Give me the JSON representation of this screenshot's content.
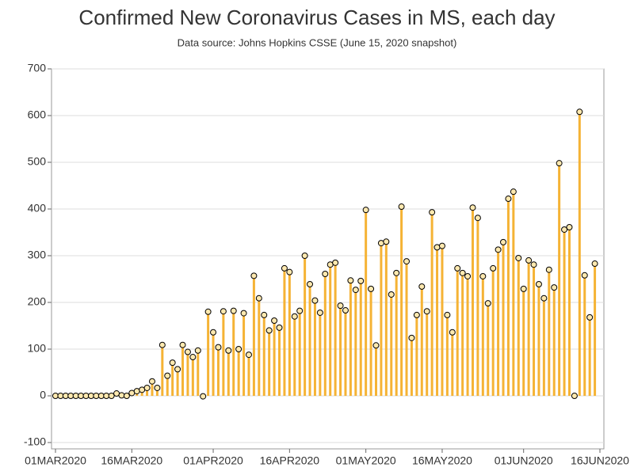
{
  "chart_data": {
    "type": "needle",
    "title": "Confirmed New Coronavirus Cases in MS, each day",
    "subtitle": "Data source: Johns Hopkins CSSE (June 15, 2020 snapshot)",
    "color": "#f5b335",
    "marker_color": "#ffe9b0",
    "grid": true,
    "x": [
      "2020-03-01",
      "2020-03-02",
      "2020-03-03",
      "2020-03-04",
      "2020-03-05",
      "2020-03-06",
      "2020-03-07",
      "2020-03-08",
      "2020-03-09",
      "2020-03-10",
      "2020-03-11",
      "2020-03-12",
      "2020-03-13",
      "2020-03-14",
      "2020-03-15",
      "2020-03-16",
      "2020-03-17",
      "2020-03-18",
      "2020-03-19",
      "2020-03-20",
      "2020-03-21",
      "2020-03-22",
      "2020-03-23",
      "2020-03-24",
      "2020-03-25",
      "2020-03-26",
      "2020-03-27",
      "2020-03-28",
      "2020-03-29",
      "2020-03-30",
      "2020-03-31",
      "2020-04-01",
      "2020-04-02",
      "2020-04-03",
      "2020-04-04",
      "2020-04-05",
      "2020-04-06",
      "2020-04-07",
      "2020-04-08",
      "2020-04-09",
      "2020-04-10",
      "2020-04-11",
      "2020-04-12",
      "2020-04-13",
      "2020-04-14",
      "2020-04-15",
      "2020-04-16",
      "2020-04-17",
      "2020-04-18",
      "2020-04-19",
      "2020-04-20",
      "2020-04-21",
      "2020-04-22",
      "2020-04-23",
      "2020-04-24",
      "2020-04-25",
      "2020-04-26",
      "2020-04-27",
      "2020-04-28",
      "2020-04-29",
      "2020-04-30",
      "2020-05-01",
      "2020-05-02",
      "2020-05-03",
      "2020-05-04",
      "2020-05-05",
      "2020-05-06",
      "2020-05-07",
      "2020-05-08",
      "2020-05-09",
      "2020-05-10",
      "2020-05-11",
      "2020-05-12",
      "2020-05-13",
      "2020-05-14",
      "2020-05-15",
      "2020-05-16",
      "2020-05-17",
      "2020-05-18",
      "2020-05-19",
      "2020-05-20",
      "2020-05-21",
      "2020-05-22",
      "2020-05-23",
      "2020-05-24",
      "2020-05-25",
      "2020-05-26",
      "2020-05-27",
      "2020-05-28",
      "2020-05-29",
      "2020-05-30",
      "2020-05-31",
      "2020-06-01",
      "2020-06-02",
      "2020-06-03",
      "2020-06-04",
      "2020-06-05",
      "2020-06-06",
      "2020-06-07",
      "2020-06-08",
      "2020-06-09",
      "2020-06-10",
      "2020-06-11",
      "2020-06-12",
      "2020-06-13",
      "2020-06-14",
      "2020-06-15"
    ],
    "values": [
      0,
      0,
      0,
      0,
      0,
      0,
      0,
      0,
      0,
      0,
      0,
      0,
      5,
      1,
      0,
      6,
      10,
      13,
      17,
      31,
      17,
      109,
      43,
      71,
      57,
      109,
      94,
      83,
      97,
      -1,
      180,
      136,
      104,
      181,
      97,
      182,
      100,
      177,
      88,
      257,
      209,
      173,
      140,
      161,
      146,
      273,
      265,
      170,
      182,
      300,
      239,
      204,
      178,
      261,
      281,
      285,
      193,
      183,
      247,
      227,
      246,
      398,
      229,
      108,
      327,
      330,
      217,
      263,
      405,
      288,
      124,
      173,
      234,
      181,
      393,
      318,
      321,
      173,
      136,
      273,
      263,
      256,
      403,
      381,
      256,
      198,
      273,
      313,
      329,
      422,
      437,
      295,
      229,
      290,
      281,
      239,
      209,
      270,
      232,
      498,
      356,
      361,
      0,
      608,
      258,
      168,
      283
    ],
    "xlim": [
      "2020-03-01",
      "2020-06-16"
    ],
    "xticks": [
      {
        "value": "2020-03-01",
        "label": "01MAR2020"
      },
      {
        "value": "2020-03-16",
        "label": "16MAR2020"
      },
      {
        "value": "2020-04-01",
        "label": "01APR2020"
      },
      {
        "value": "2020-04-16",
        "label": "16APR2020"
      },
      {
        "value": "2020-05-01",
        "label": "01MAY2020"
      },
      {
        "value": "2020-05-16",
        "label": "16MAY2020"
      },
      {
        "value": "2020-06-01",
        "label": "01JUN2020"
      },
      {
        "value": "2020-06-16",
        "label": "16JUN2020"
      }
    ],
    "ylim": [
      -100,
      700
    ],
    "yticks": [
      -100,
      0,
      100,
      200,
      300,
      400,
      500,
      600,
      700
    ]
  }
}
